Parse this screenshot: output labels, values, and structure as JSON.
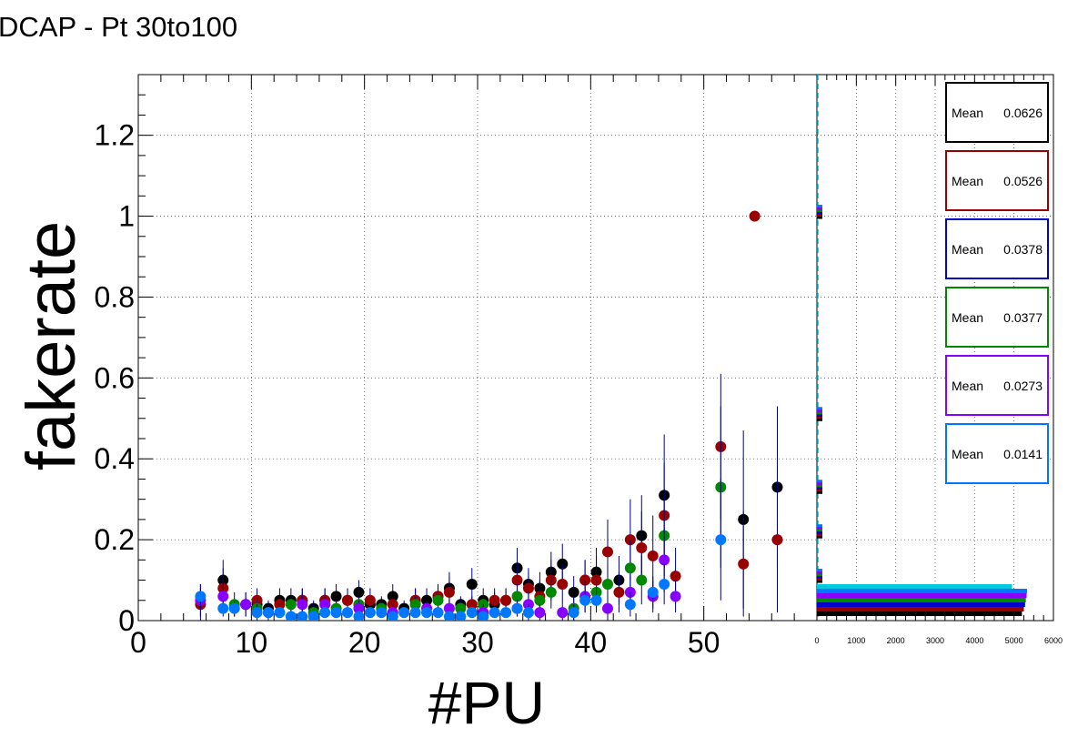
{
  "title": "DCAP - Pt 30to100",
  "chart_data": [
    {
      "type": "scatter",
      "title": "",
      "xlabel": "#PU",
      "ylabel": "fakerate",
      "xlim": [
        0,
        60
      ],
      "ylim": [
        0,
        1.35
      ],
      "x_ticks": [
        0,
        10,
        20,
        30,
        40,
        50
      ],
      "x_tick_labels": [
        "0",
        "10",
        "20",
        "30",
        "40",
        "50"
      ],
      "y_ticks": [
        0,
        0.2,
        0.4,
        0.6,
        0.8,
        1,
        1.2
      ],
      "y_tick_labels": [
        "0",
        "0.2",
        "0.4",
        "0.6",
        "0.8",
        "1",
        "1.2"
      ],
      "grid": true,
      "series": [
        {
          "color": "#000000",
          "points": [
            [
              7,
              0.1,
              0.05
            ],
            [
              9,
              0.04,
              0.03
            ],
            [
              10,
              0.04,
              0.03
            ],
            [
              11,
              0.03,
              0.02
            ],
            [
              12,
              0.05,
              0.03
            ],
            [
              13,
              0.05,
              0.03
            ],
            [
              14,
              0.05,
              0.03
            ],
            [
              15,
              0.03,
              0.02
            ],
            [
              16,
              0.05,
              0.03
            ],
            [
              17,
              0.06,
              0.03
            ],
            [
              18,
              0.05,
              0.03
            ],
            [
              19,
              0.07,
              0.03
            ],
            [
              20,
              0.04,
              0.02
            ],
            [
              21,
              0.04,
              0.02
            ],
            [
              22,
              0.06,
              0.03
            ],
            [
              23,
              0.03,
              0.02
            ],
            [
              24,
              0.05,
              0.03
            ],
            [
              25,
              0.05,
              0.03
            ],
            [
              26,
              0.06,
              0.03
            ],
            [
              27,
              0.08,
              0.04
            ],
            [
              28,
              0.04,
              0.02
            ],
            [
              29,
              0.09,
              0.04
            ],
            [
              30,
              0.05,
              0.03
            ],
            [
              31,
              0.04,
              0.03
            ],
            [
              32,
              0.05,
              0.03
            ],
            [
              33,
              0.13,
              0.05
            ],
            [
              34,
              0.09,
              0.04
            ],
            [
              35,
              0.08,
              0.04
            ],
            [
              36,
              0.12,
              0.05
            ],
            [
              37,
              0.14,
              0.05
            ],
            [
              38,
              0.07,
              0.04
            ],
            [
              39,
              0.1,
              0.05
            ],
            [
              40,
              0.12,
              0.06
            ],
            [
              42,
              0.1,
              0.06
            ],
            [
              44,
              0.21,
              0.1
            ],
            [
              46,
              0.31,
              0.15
            ],
            [
              53,
              0.25,
              0.22
            ],
            [
              56,
              0.33,
              0.2
            ]
          ]
        },
        {
          "color": "#990000",
          "points": [
            [
              5,
              0.04,
              0.04
            ],
            [
              7,
              0.08,
              0.05
            ],
            [
              10,
              0.05,
              0.03
            ],
            [
              12,
              0.04,
              0.02
            ],
            [
              14,
              0.05,
              0.03
            ],
            [
              16,
              0.05,
              0.03
            ],
            [
              18,
              0.05,
              0.03
            ],
            [
              20,
              0.05,
              0.03
            ],
            [
              22,
              0.04,
              0.02
            ],
            [
              24,
              0.05,
              0.03
            ],
            [
              26,
              0.06,
              0.03
            ],
            [
              27,
              0.07,
              0.04
            ],
            [
              29,
              0.04,
              0.02
            ],
            [
              31,
              0.05,
              0.03
            ],
            [
              32,
              0.05,
              0.03
            ],
            [
              33,
              0.1,
              0.04
            ],
            [
              34,
              0.08,
              0.04
            ],
            [
              35,
              0.06,
              0.04
            ],
            [
              36,
              0.1,
              0.05
            ],
            [
              37,
              0.09,
              0.05
            ],
            [
              39,
              0.1,
              0.05
            ],
            [
              40,
              0.1,
              0.06
            ],
            [
              41,
              0.17,
              0.08
            ],
            [
              42,
              0.07,
              0.05
            ],
            [
              43,
              0.2,
              0.1
            ],
            [
              44,
              0.18,
              0.09
            ],
            [
              45,
              0.16,
              0.1
            ],
            [
              46,
              0.26,
              0.13
            ],
            [
              47,
              0.11,
              0.07
            ],
            [
              51,
              0.43,
              0.18
            ],
            [
              53,
              0.14,
              0.13
            ],
            [
              54,
              1.0,
              0.0
            ],
            [
              56,
              0.2,
              0.18
            ]
          ]
        },
        {
          "color": "#008800",
          "points": [
            [
              8,
              0.04,
              0.03
            ],
            [
              10,
              0.03,
              0.02
            ],
            [
              13,
              0.04,
              0.02
            ],
            [
              15,
              0.02,
              0.02
            ],
            [
              17,
              0.03,
              0.02
            ],
            [
              19,
              0.04,
              0.02
            ],
            [
              21,
              0.03,
              0.02
            ],
            [
              24,
              0.04,
              0.02
            ],
            [
              26,
              0.05,
              0.03
            ],
            [
              28,
              0.03,
              0.02
            ],
            [
              30,
              0.04,
              0.02
            ],
            [
              33,
              0.06,
              0.03
            ],
            [
              35,
              0.05,
              0.03
            ],
            [
              36,
              0.07,
              0.04
            ],
            [
              38,
              0.03,
              0.03
            ],
            [
              40,
              0.07,
              0.04
            ],
            [
              41,
              0.09,
              0.05
            ],
            [
              43,
              0.13,
              0.07
            ],
            [
              44,
              0.1,
              0.06
            ],
            [
              46,
              0.21,
              0.1
            ],
            [
              51,
              0.33,
              0.2
            ]
          ]
        },
        {
          "color": "#8800ff",
          "points": [
            [
              5,
              0.05,
              0.04
            ],
            [
              7,
              0.06,
              0.04
            ],
            [
              9,
              0.04,
              0.03
            ],
            [
              11,
              0.02,
              0.02
            ],
            [
              14,
              0.04,
              0.03
            ],
            [
              16,
              0.04,
              0.03
            ],
            [
              19,
              0.03,
              0.02
            ],
            [
              22,
              0.02,
              0.02
            ],
            [
              25,
              0.03,
              0.02
            ],
            [
              27,
              0.03,
              0.02
            ],
            [
              30,
              0.02,
              0.02
            ],
            [
              33,
              0.03,
              0.02
            ],
            [
              34,
              0.04,
              0.03
            ],
            [
              35,
              0.02,
              0.02
            ],
            [
              37,
              0.02,
              0.02
            ],
            [
              39,
              0.06,
              0.04
            ],
            [
              41,
              0.03,
              0.03
            ],
            [
              43,
              0.07,
              0.04
            ],
            [
              45,
              0.06,
              0.04
            ],
            [
              46,
              0.15,
              0.08
            ],
            [
              47,
              0.06,
              0.04
            ]
          ]
        },
        {
          "color": "#0077ff",
          "points": [
            [
              5,
              0.06,
              0.03
            ],
            [
              7,
              0.03,
              0.02
            ],
            [
              8,
              0.03,
              0.02
            ],
            [
              10,
              0.02,
              0.02
            ],
            [
              11,
              0.02,
              0.01
            ],
            [
              12,
              0.02,
              0.01
            ],
            [
              13,
              0.01,
              0.01
            ],
            [
              14,
              0.01,
              0.01
            ],
            [
              15,
              0.01,
              0.01
            ],
            [
              16,
              0.02,
              0.01
            ],
            [
              17,
              0.02,
              0.01
            ],
            [
              18,
              0.02,
              0.01
            ],
            [
              19,
              0.01,
              0.01
            ],
            [
              20,
              0.02,
              0.01
            ],
            [
              21,
              0.02,
              0.01
            ],
            [
              22,
              0.01,
              0.01
            ],
            [
              23,
              0.02,
              0.01
            ],
            [
              24,
              0.02,
              0.01
            ],
            [
              25,
              0.02,
              0.01
            ],
            [
              26,
              0.02,
              0.01
            ],
            [
              27,
              0.01,
              0.01
            ],
            [
              28,
              0.01,
              0.01
            ],
            [
              29,
              0.02,
              0.01
            ],
            [
              30,
              0.01,
              0.01
            ],
            [
              31,
              0.02,
              0.01
            ],
            [
              32,
              0.02,
              0.01
            ],
            [
              33,
              0.03,
              0.02
            ],
            [
              34,
              0.02,
              0.02
            ],
            [
              38,
              0.02,
              0.02
            ],
            [
              39,
              0.05,
              0.03
            ],
            [
              40,
              0.05,
              0.03
            ],
            [
              43,
              0.04,
              0.03
            ],
            [
              45,
              0.07,
              0.04
            ],
            [
              46,
              0.09,
              0.05
            ],
            [
              51,
              0.2,
              0.15
            ]
          ]
        }
      ]
    },
    {
      "type": "bar",
      "title": "",
      "orientation": "horizontal",
      "xlim": [
        0,
        6000
      ],
      "x_ticks": [
        0,
        1000,
        2000,
        3000,
        4000,
        5000,
        6000
      ],
      "x_tick_labels": [
        "0",
        "1000",
        "2000",
        "3000",
        "4000",
        "5000",
        "6000"
      ],
      "ylim": [
        0,
        1.35
      ],
      "grid": true,
      "series": [
        {
          "color": "#000000",
          "length": 5200,
          "mean_label": "Mean",
          "mean_value": "0.0626"
        },
        {
          "color": "#990000",
          "length": 5250,
          "mean_label": "Mean",
          "mean_value": "0.0526"
        },
        {
          "color": "#0000cc",
          "length": 5280,
          "mean_label": "Mean",
          "mean_value": "0.0378"
        },
        {
          "color": "#008800",
          "length": 5300,
          "mean_label": "Mean",
          "mean_value": "0.0377"
        },
        {
          "color": "#8800ff",
          "length": 5320,
          "mean_label": "Mean",
          "mean_value": "0.0273"
        },
        {
          "color": "#0077ff",
          "length": 5330,
          "mean_label": "Mean",
          "mean_value": "0.0141"
        }
      ],
      "cyan_bar_length": 4950
    }
  ]
}
